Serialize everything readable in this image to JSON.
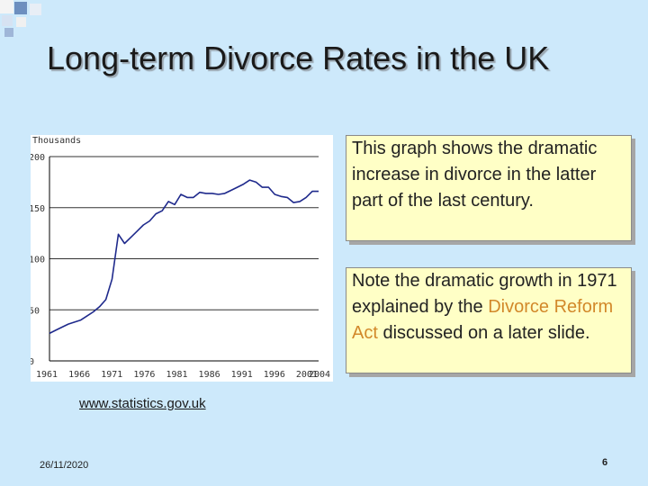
{
  "slide": {
    "title": "Long-term Divorce Rates in the UK",
    "source_link": "www.statistics.gov.uk",
    "date": "26/11/2020",
    "page_number": "6",
    "colors": {
      "background": "#cde9fb",
      "note_bg": "#ffffc6",
      "accent": "#d2882a",
      "line": "#1f2a8c"
    }
  },
  "notes": {
    "note1": "This graph shows the dramatic increase in divorce in the latter part of the last century.",
    "note2_before": "Note the dramatic growth in 1971 explained by the ",
    "note2_highlight": "Divorce Reform Act",
    "note2_after": " discussed on a later slide."
  },
  "chart_data": {
    "type": "line",
    "ylabel": "Thousands",
    "xlabel": "",
    "ylim": [
      0,
      200
    ],
    "xlim": [
      1961,
      2004
    ],
    "yticks": [
      0,
      50,
      100,
      150,
      200
    ],
    "xtick_labels": [
      "1961",
      "1966",
      "1971",
      "1976",
      "1981",
      "1986",
      "1991",
      "1996",
      "2001",
      "2004"
    ],
    "grid": "horizontal",
    "series": [
      {
        "x": [
          1961,
          1962,
          1963,
          1964,
          1965,
          1966,
          1967,
          1968,
          1969,
          1970,
          1971,
          1972,
          1973,
          1974,
          1975,
          1976,
          1977,
          1978,
          1979,
          1980,
          1981,
          1982,
          1983,
          1984,
          1985,
          1986,
          1987,
          1988,
          1989,
          1990,
          1991,
          1992,
          1993,
          1994,
          1995,
          1996,
          1997,
          1998,
          1999,
          2000,
          2001,
          2002,
          2003,
          2004
        ],
        "values": [
          27,
          30,
          33,
          36,
          38,
          40,
          44,
          48,
          53,
          60,
          80,
          124,
          115,
          121,
          127,
          133,
          137,
          144,
          147,
          156,
          153,
          163,
          160,
          160,
          165,
          164,
          164,
          163,
          164,
          167,
          170,
          173,
          177,
          175,
          170,
          170,
          163,
          161,
          160,
          155,
          156,
          160,
          166,
          166
        ]
      }
    ]
  }
}
